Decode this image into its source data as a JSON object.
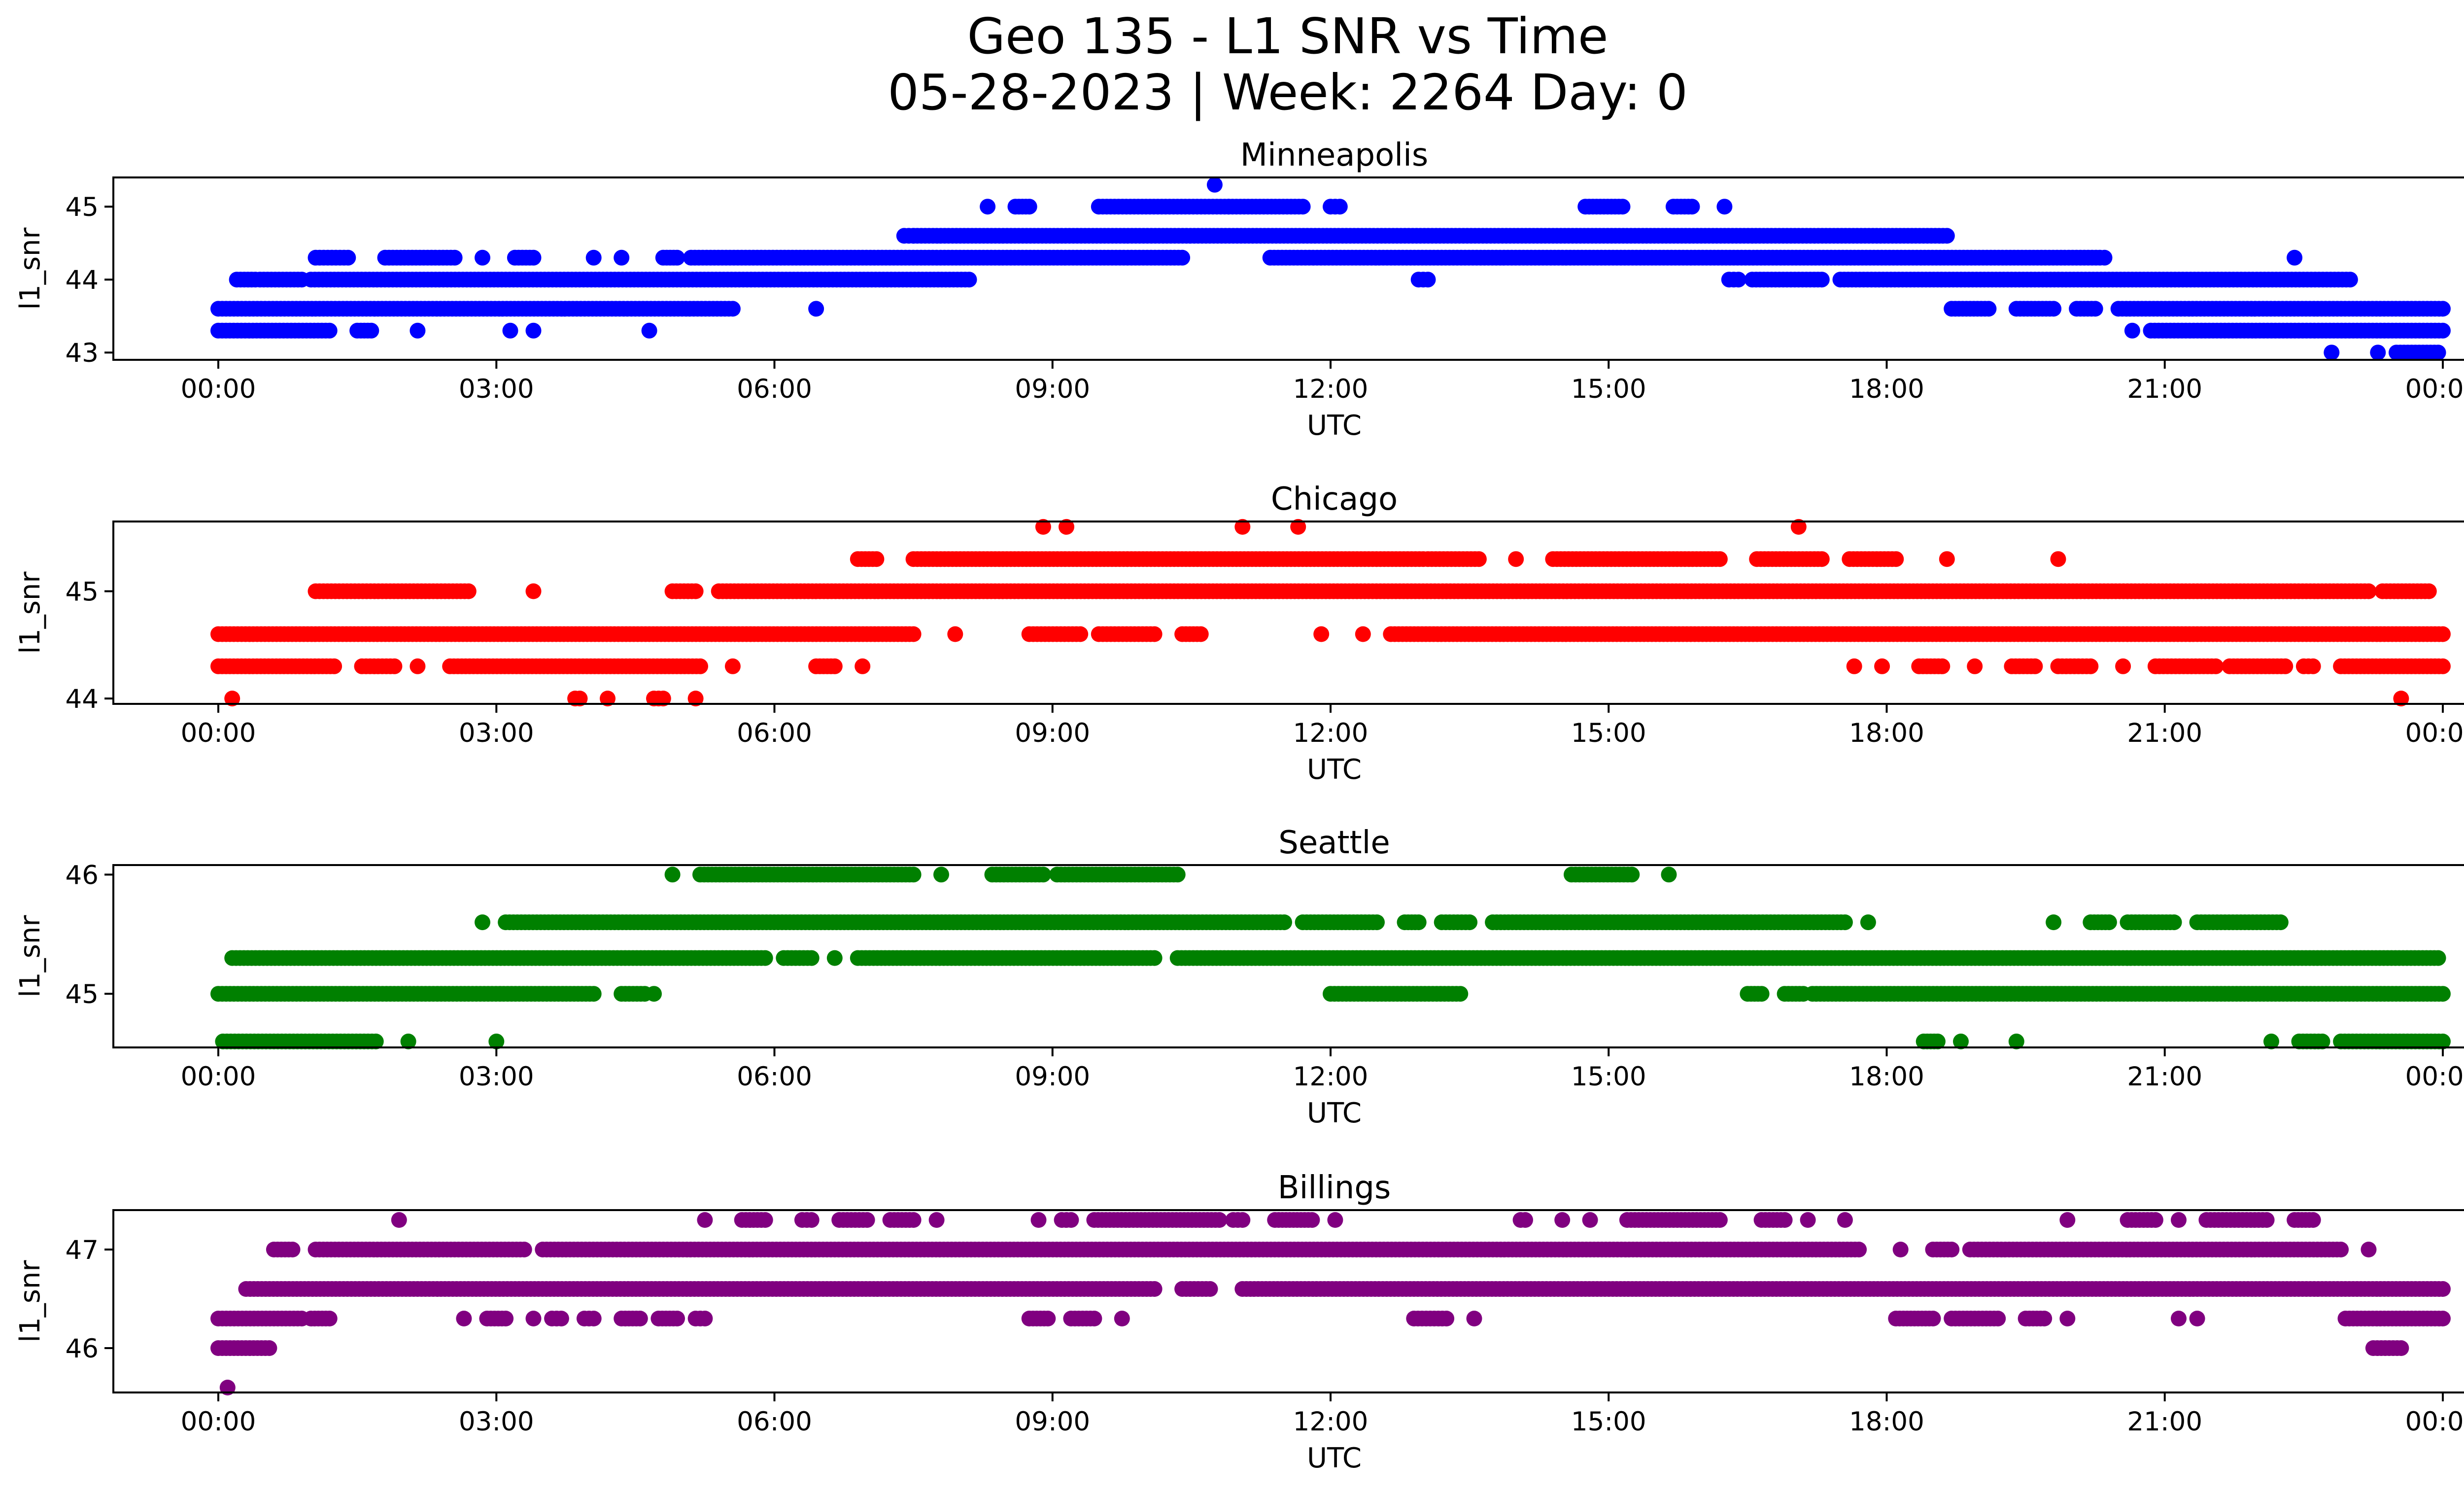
{
  "title_line1": "Geo 135 - L1 SNR vs Time",
  "title_line2": "05-28-2023 | Week: 2264 Day: 0",
  "chart_data": [
    {
      "type": "scatter",
      "title": "Minneapolis",
      "color": "#0000ff",
      "xlabel": "UTC",
      "ylabel": "l1_snr",
      "xlim": [
        "00:00",
        "24:00"
      ],
      "xticks": [
        "00:00",
        "03:00",
        "06:00",
        "09:00",
        "12:00",
        "15:00",
        "18:00",
        "21:00",
        "00:00"
      ],
      "yticks": [
        43,
        44,
        45
      ],
      "ylim": [
        42.9,
        45.4
      ],
      "series": [
        {
          "y": 45.3,
          "segments": [
            [
              10.75,
              10.75
            ]
          ]
        },
        {
          "y": 45.0,
          "segments": [
            [
              8.3,
              8.3
            ],
            [
              8.6,
              8.75
            ],
            [
              9.5,
              10.9
            ],
            [
              10.9,
              11.7
            ],
            [
              12.0,
              12.1
            ],
            [
              14.75,
              15.15
            ],
            [
              15.7,
              15.9
            ],
            [
              16.25,
              16.25
            ]
          ]
        },
        {
          "y": 44.6,
          "segments": [
            [
              7.4,
              7.5
            ],
            [
              7.5,
              18.65
            ]
          ]
        },
        {
          "y": 44.3,
          "segments": [
            [
              1.05,
              1.4
            ],
            [
              1.8,
              2.55
            ],
            [
              2.85,
              2.85
            ],
            [
              3.2,
              3.4
            ],
            [
              4.05,
              4.05
            ],
            [
              4.35,
              4.35
            ],
            [
              4.8,
              4.95
            ],
            [
              5.1,
              10.4
            ],
            [
              11.35,
              20.3
            ],
            [
              20.35,
              20.35
            ],
            [
              22.4,
              22.4
            ]
          ]
        },
        {
          "y": 44.0,
          "segments": [
            [
              0.2,
              0.4
            ],
            [
              0.45,
              0.9
            ],
            [
              1.0,
              8.1
            ],
            [
              12.95,
              13.05
            ],
            [
              16.3,
              16.4
            ],
            [
              16.55,
              17.3
            ],
            [
              17.5,
              23.0
            ]
          ]
        },
        {
          "y": 43.6,
          "segments": [
            [
              0.0,
              5.55
            ],
            [
              6.45,
              6.45
            ],
            [
              18.7,
              19.1
            ],
            [
              19.4,
              19.8
            ],
            [
              20.05,
              20.25
            ],
            [
              20.5,
              24.0
            ]
          ]
        },
        {
          "y": 43.3,
          "segments": [
            [
              0.0,
              1.2
            ],
            [
              1.5,
              1.65
            ],
            [
              2.15,
              2.15
            ],
            [
              3.15,
              3.15
            ],
            [
              3.4,
              3.4
            ],
            [
              4.65,
              4.65
            ],
            [
              20.65,
              20.65
            ],
            [
              20.85,
              24.0
            ]
          ]
        },
        {
          "y": 43.0,
          "segments": [
            [
              22.8,
              22.8
            ],
            [
              23.3,
              23.3
            ],
            [
              23.5,
              23.95
            ]
          ]
        }
      ]
    },
    {
      "type": "scatter",
      "title": "Chicago",
      "color": "#ff0000",
      "xlabel": "UTC",
      "ylabel": "l1_snr",
      "xlim": [
        "00:00",
        "24:00"
      ],
      "xticks": [
        "00:00",
        "03:00",
        "06:00",
        "09:00",
        "12:00",
        "15:00",
        "18:00",
        "21:00",
        "00:00"
      ],
      "yticks": [
        44,
        45
      ],
      "ylim": [
        43.95,
        45.65
      ],
      "series": [
        {
          "y": 45.6,
          "segments": [
            [
              8.9,
              8.9
            ],
            [
              9.15,
              9.15
            ],
            [
              11.05,
              11.05
            ],
            [
              11.65,
              11.65
            ],
            [
              17.05,
              17.05
            ]
          ]
        },
        {
          "y": 45.3,
          "segments": [
            [
              6.9,
              7.1
            ],
            [
              7.5,
              13.0
            ],
            [
              13.05,
              13.6
            ],
            [
              14.0,
              14.0
            ],
            [
              14.4,
              16.2
            ],
            [
              16.6,
              17.3
            ],
            [
              17.6,
              18.1
            ],
            [
              18.65,
              18.65
            ],
            [
              19.85,
              19.85
            ]
          ]
        },
        {
          "y": 45.0,
          "segments": [
            [
              1.05,
              2.7
            ],
            [
              3.4,
              3.4
            ],
            [
              4.9,
              5.15
            ],
            [
              5.4,
              23.2
            ],
            [
              23.35,
              23.85
            ]
          ]
        },
        {
          "y": 44.6,
          "segments": [
            [
              0.0,
              7.5
            ],
            [
              7.95,
              7.95
            ],
            [
              8.75,
              9.3
            ],
            [
              9.5,
              10.1
            ],
            [
              10.4,
              10.6
            ],
            [
              11.9,
              11.9
            ],
            [
              12.35,
              12.35
            ],
            [
              12.65,
              24.0
            ]
          ]
        },
        {
          "y": 44.3,
          "segments": [
            [
              0.0,
              1.25
            ],
            [
              1.55,
              1.9
            ],
            [
              2.15,
              2.15
            ],
            [
              2.5,
              5.2
            ],
            [
              5.55,
              5.55
            ],
            [
              6.45,
              6.65
            ],
            [
              6.95,
              6.95
            ],
            [
              17.65,
              17.65
            ],
            [
              17.95,
              17.95
            ],
            [
              18.35,
              18.6
            ],
            [
              18.95,
              18.95
            ],
            [
              19.35,
              19.6
            ],
            [
              19.85,
              20.2
            ],
            [
              20.55,
              20.55
            ],
            [
              20.9,
              21.55
            ],
            [
              21.7,
              22.3
            ],
            [
              22.5,
              22.6
            ],
            [
              22.9,
              24.0
            ]
          ]
        },
        {
          "y": 44.0,
          "segments": [
            [
              0.15,
              0.15
            ],
            [
              3.85,
              3.9
            ],
            [
              4.2,
              4.2
            ],
            [
              4.7,
              4.8
            ],
            [
              5.15,
              5.15
            ],
            [
              23.55,
              23.55
            ]
          ]
        }
      ]
    },
    {
      "type": "scatter",
      "title": "Seattle",
      "color": "#008000",
      "xlabel": "UTC",
      "ylabel": "l1_snr",
      "xlim": [
        "00:00",
        "24:00"
      ],
      "xticks": [
        "00:00",
        "03:00",
        "06:00",
        "09:00",
        "12:00",
        "15:00",
        "18:00",
        "21:00",
        "00:00"
      ],
      "yticks": [
        45,
        46
      ],
      "ylim": [
        44.55,
        46.08
      ],
      "series": [
        {
          "y": 46.0,
          "segments": [
            [
              4.9,
              4.9
            ],
            [
              5.2,
              7.5
            ],
            [
              7.8,
              7.8
            ],
            [
              8.35,
              8.9
            ],
            [
              9.05,
              10.35
            ],
            [
              14.6,
              15.25
            ],
            [
              15.65,
              15.65
            ]
          ]
        },
        {
          "y": 45.6,
          "segments": [
            [
              2.85,
              2.85
            ],
            [
              3.1,
              11.5
            ],
            [
              11.7,
              12.5
            ],
            [
              12.8,
              12.95
            ],
            [
              13.2,
              13.5
            ],
            [
              13.75,
              17.55
            ],
            [
              17.8,
              17.8
            ],
            [
              19.8,
              19.8
            ],
            [
              20.2,
              20.4
            ],
            [
              20.6,
              21.1
            ],
            [
              21.35,
              22.25
            ]
          ]
        },
        {
          "y": 45.3,
          "segments": [
            [
              0.15,
              5.9
            ],
            [
              6.1,
              6.4
            ],
            [
              6.65,
              6.65
            ],
            [
              6.9,
              10.1
            ],
            [
              10.35,
              23.95
            ]
          ]
        },
        {
          "y": 45.0,
          "segments": [
            [
              0.0,
              4.05
            ],
            [
              4.35,
              4.6
            ],
            [
              4.7,
              4.7
            ],
            [
              12.0,
              13.4
            ],
            [
              16.5,
              16.65
            ],
            [
              16.9,
              17.1
            ],
            [
              17.2,
              24.0
            ]
          ]
        },
        {
          "y": 44.6,
          "segments": [
            [
              0.05,
              1.7
            ],
            [
              2.05,
              2.05
            ],
            [
              3.0,
              3.0
            ],
            [
              18.4,
              18.55
            ],
            [
              18.8,
              18.8
            ],
            [
              19.4,
              19.4
            ],
            [
              22.15,
              22.15
            ],
            [
              22.45,
              22.7
            ],
            [
              22.9,
              24.0
            ]
          ]
        }
      ]
    },
    {
      "type": "scatter",
      "title": "Billings",
      "color": "#800080",
      "xlabel": "UTC",
      "ylabel": "l1_snr",
      "xlim": [
        "00:00",
        "24:00"
      ],
      "xticks": [
        "00:00",
        "03:00",
        "06:00",
        "09:00",
        "12:00",
        "15:00",
        "18:00",
        "21:00",
        "00:00"
      ],
      "yticks": [
        46,
        47
      ],
      "ylim": [
        45.55,
        47.4
      ],
      "series": [
        {
          "y": 47.3,
          "segments": [
            [
              1.95,
              1.95
            ],
            [
              5.25,
              5.25
            ],
            [
              5.65,
              5.9
            ],
            [
              6.3,
              6.4
            ],
            [
              6.7,
              7.0
            ],
            [
              7.25,
              7.5
            ],
            [
              7.75,
              7.75
            ],
            [
              8.85,
              8.85
            ],
            [
              9.1,
              9.2
            ],
            [
              9.45,
              10.8
            ],
            [
              10.95,
              11.05
            ],
            [
              11.4,
              11.8
            ],
            [
              12.05,
              12.05
            ],
            [
              14.05,
              14.1
            ],
            [
              14.5,
              14.5
            ],
            [
              14.8,
              14.8
            ],
            [
              15.2,
              16.2
            ],
            [
              16.65,
              16.9
            ],
            [
              17.15,
              17.15
            ],
            [
              17.55,
              17.55
            ],
            [
              19.95,
              19.95
            ],
            [
              20.6,
              20.9
            ],
            [
              21.15,
              21.15
            ],
            [
              21.45,
              22.1
            ],
            [
              22.4,
              22.6
            ]
          ]
        },
        {
          "y": 47.0,
          "segments": [
            [
              0.6,
              0.8
            ],
            [
              1.05,
              3.3
            ],
            [
              3.5,
              17.7
            ],
            [
              18.15,
              18.15
            ],
            [
              18.5,
              18.7
            ],
            [
              18.9,
              22.9
            ],
            [
              23.2,
              23.2
            ]
          ]
        },
        {
          "y": 46.6,
          "segments": [
            [
              0.3,
              10.1
            ],
            [
              10.4,
              10.7
            ],
            [
              11.05,
              24.0
            ]
          ]
        },
        {
          "y": 46.3,
          "segments": [
            [
              0.0,
              0.9
            ],
            [
              1.0,
              1.2
            ],
            [
              2.65,
              2.65
            ],
            [
              2.9,
              3.1
            ],
            [
              3.4,
              3.4
            ],
            [
              3.6,
              3.7
            ],
            [
              3.95,
              4.05
            ],
            [
              4.35,
              4.55
            ],
            [
              4.75,
              4.95
            ],
            [
              5.15,
              5.25
            ],
            [
              8.75,
              8.95
            ],
            [
              9.2,
              9.45
            ],
            [
              9.75,
              9.75
            ],
            [
              12.9,
              13.25
            ],
            [
              13.55,
              13.55
            ],
            [
              18.1,
              18.5
            ],
            [
              18.7,
              19.2
            ],
            [
              19.5,
              19.7
            ],
            [
              19.95,
              19.95
            ],
            [
              21.15,
              21.15
            ],
            [
              21.35,
              21.35
            ],
            [
              22.95,
              24.0
            ]
          ]
        },
        {
          "y": 46.0,
          "segments": [
            [
              0.0,
              0.55
            ],
            [
              23.25,
              23.55
            ]
          ]
        },
        {
          "y": 45.6,
          "segments": [
            [
              0.1,
              0.1
            ]
          ]
        }
      ]
    }
  ]
}
